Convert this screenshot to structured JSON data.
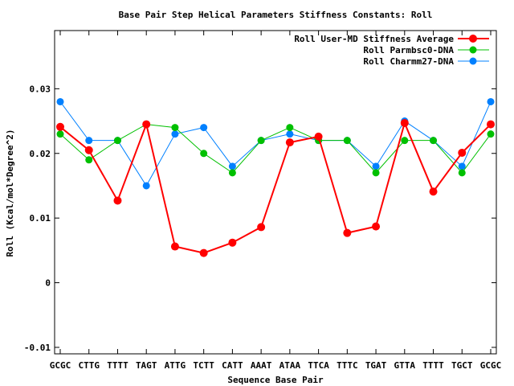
{
  "chart_data": {
    "type": "line",
    "title": "Base Pair Step Helical Parameters Stiffness Constants: Roll",
    "xlabel": "Sequence Base Pair",
    "ylabel": "Roll (Kcal/mol*Degree^2)",
    "ylim": [
      -0.011,
      0.039
    ],
    "yticks": [
      -0.01,
      0,
      0.01,
      0.02,
      0.03
    ],
    "ytick_labels": [
      "-0.01",
      "0",
      "0.01",
      "0.02",
      "0.03"
    ],
    "categories": [
      "GCGC",
      "CTTG",
      "TTTT",
      "TAGT",
      "ATTG",
      "TCTT",
      "CATT",
      "AAAT",
      "ATAA",
      "TTCA",
      "TTTC",
      "TGAT",
      "GTTA",
      "TTTT",
      "TGCT",
      "GCGC"
    ],
    "grid": false,
    "legend_position": "top-right",
    "series": [
      {
        "name": "Roll User-MD Stiffness Average",
        "color": "#ff0000",
        "values": [
          0.0241,
          0.0205,
          0.0127,
          0.0245,
          0.0056,
          0.0046,
          0.0062,
          0.0086,
          0.0217,
          0.0226,
          0.0077,
          0.0087,
          0.0247,
          0.0141,
          0.0201,
          0.0245
        ]
      },
      {
        "name": "Roll Parmbsc0-DNA",
        "color": "#00c000",
        "values": [
          0.023,
          0.019,
          0.022,
          0.0245,
          0.024,
          0.02,
          0.017,
          0.022,
          0.024,
          0.022,
          0.022,
          0.017,
          0.022,
          0.022,
          0.017,
          0.023
        ]
      },
      {
        "name": "Roll Charmm27-DNA",
        "color": "#0080ff",
        "values": [
          0.028,
          0.022,
          0.022,
          0.015,
          0.023,
          0.024,
          0.018,
          0.022,
          0.023,
          0.022,
          0.022,
          0.018,
          0.025,
          0.022,
          0.018,
          0.028
        ]
      }
    ]
  }
}
